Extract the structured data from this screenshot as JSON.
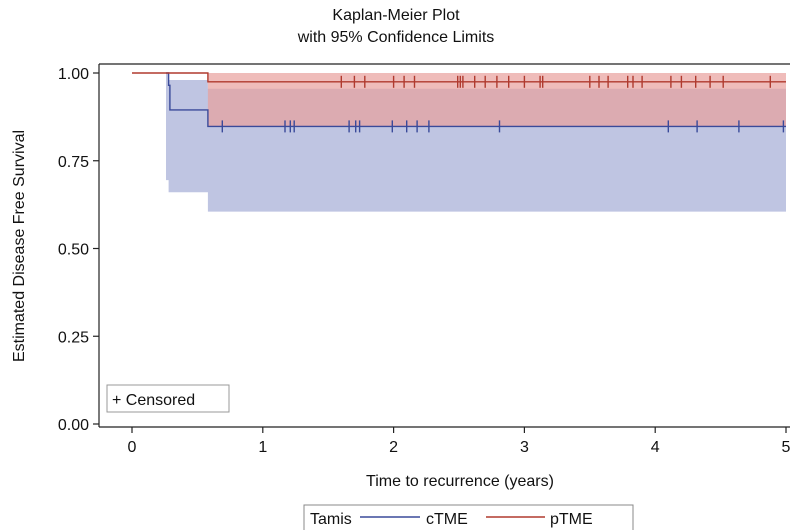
{
  "chart_data": {
    "type": "line",
    "chart_kind": "kaplan-meier",
    "title_lines": [
      "Kaplan-Meier Plot",
      "with 95% Confidence Limits"
    ],
    "xlabel": "Time to recurrence (years)",
    "ylabel": "Estimated Disease Free Survival",
    "xlim": [
      0,
      5
    ],
    "ylim": [
      0,
      1
    ],
    "x_ticks": [
      0,
      1,
      2,
      3,
      4,
      5
    ],
    "x_tick_labels": [
      "0",
      "1",
      "2",
      "3",
      "4",
      "5"
    ],
    "y_ticks": [
      0,
      0.25,
      0.5,
      0.75,
      1.0
    ],
    "y_tick_labels": [
      "0.00",
      "0.25",
      "0.50",
      "0.75",
      "1.00"
    ],
    "grid": false,
    "censored_label": "+ Censored",
    "legend": {
      "title": "Tamis",
      "placement": "bottom-center"
    },
    "series": [
      {
        "name": "cTME",
        "color": "#3a4a9a",
        "band_color": "#aab2d8",
        "steps": [
          [
            0.26,
            1.0
          ],
          [
            0.28,
            0.965
          ],
          [
            0.29,
            0.895
          ],
          [
            0.58,
            0.848
          ],
          [
            5.0,
            0.848
          ]
        ],
        "ci": [
          [
            0.26,
            0.695,
            1.0
          ],
          [
            0.28,
            0.66,
            0.98
          ],
          [
            0.58,
            0.605,
            0.955
          ],
          [
            5.0,
            0.605,
            0.955
          ]
        ],
        "censored_x": [
          0.69,
          1.17,
          1.21,
          1.24,
          1.66,
          1.71,
          1.74,
          1.99,
          2.1,
          2.18,
          2.27,
          2.81,
          4.1,
          4.32,
          4.64,
          4.98
        ]
      },
      {
        "name": "pTME",
        "color": "#b03a2e",
        "band_color": "#e8a09c",
        "steps": [
          [
            0.0,
            1.0
          ],
          [
            0.58,
            0.975
          ],
          [
            5.0,
            0.975
          ]
        ],
        "ci": [
          [
            0.0,
            1.0,
            1.0
          ],
          [
            0.58,
            0.848,
            1.0
          ],
          [
            5.0,
            0.848,
            1.0
          ]
        ],
        "censored_x": [
          1.6,
          1.7,
          1.78,
          2.0,
          2.08,
          2.16,
          2.49,
          2.51,
          2.53,
          2.62,
          2.7,
          2.79,
          2.88,
          3.0,
          3.12,
          3.14,
          3.5,
          3.57,
          3.64,
          3.79,
          3.83,
          3.9,
          4.12,
          4.2,
          4.31,
          4.42,
          4.52,
          4.88
        ]
      }
    ]
  }
}
